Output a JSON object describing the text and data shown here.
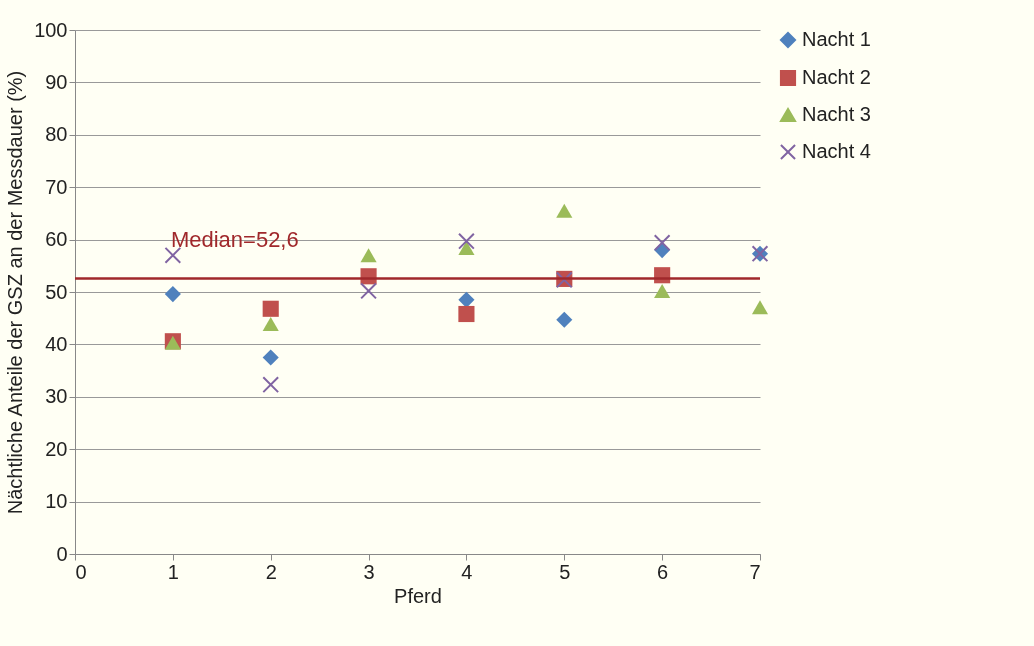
{
  "chart_data": {
    "type": "scatter",
    "xlabel": "Pferd",
    "ylabel": "Nächtliche Anteile der GSZ an der Messdauer (%)",
    "x": [
      1,
      2,
      3,
      4,
      5,
      6,
      7
    ],
    "xlim": [
      0,
      7
    ],
    "xticks": [
      0,
      1,
      2,
      3,
      4,
      5,
      6,
      7
    ],
    "ylim": [
      0,
      100
    ],
    "yticks": [
      0,
      10,
      20,
      30,
      40,
      50,
      60,
      70,
      80,
      90,
      100
    ],
    "grid": "y",
    "legend": "right",
    "series": [
      {
        "name": "Nacht 1",
        "color": "#4f81bd",
        "marker": "diamond",
        "values": [
          49.6,
          37.5,
          null,
          48.5,
          44.7,
          58,
          57.3
        ]
      },
      {
        "name": "Nacht 2",
        "color": "#c0504d",
        "marker": "square",
        "values": [
          40.6,
          46.8,
          53,
          45.8,
          52.5,
          53.2,
          null
        ]
      },
      {
        "name": "Nacht 3",
        "color": "#9bbb59",
        "marker": "triangle",
        "values": [
          40.3,
          43.9,
          57,
          58.4,
          65.5,
          50.2,
          47.1
        ]
      },
      {
        "name": "Nacht 4",
        "color": "#8064a2",
        "marker": "cross",
        "values": [
          57,
          32.3,
          50.2,
          59.7,
          52.3,
          59.4,
          57.3
        ]
      }
    ],
    "ref_lines": [
      {
        "axis": "y",
        "value": 52.6,
        "label": "Median=52,6",
        "color": "#a0282b"
      }
    ]
  }
}
